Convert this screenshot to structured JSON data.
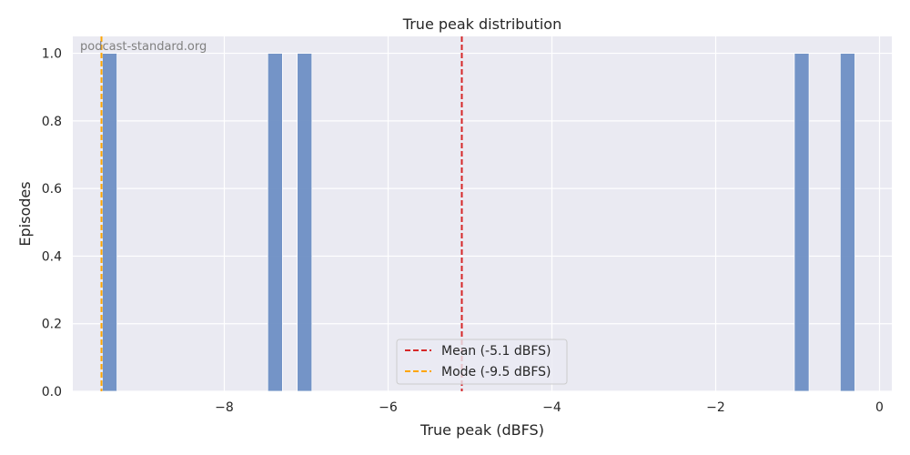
{
  "chart_data": {
    "type": "bar",
    "title": "True peak distribution",
    "xlabel": "True peak (dBFS)",
    "ylabel": "Episodes",
    "xlim": [
      -9.85,
      0.15
    ],
    "ylim": [
      0,
      1.05
    ],
    "xticks": [
      -8,
      -6,
      -4,
      -2,
      0
    ],
    "xtick_labels": [
      "−8",
      "−6",
      "−4",
      "−2",
      "0"
    ],
    "yticks": [
      0.0,
      0.2,
      0.4,
      0.6,
      0.8,
      1.0
    ],
    "ytick_labels": [
      "0.0",
      "0.2",
      "0.4",
      "0.6",
      "0.8",
      "1.0"
    ],
    "bin_width": 0.18,
    "bars": [
      {
        "x": -9.4,
        "value": 1
      },
      {
        "x": -7.38,
        "value": 1
      },
      {
        "x": -7.02,
        "value": 1
      },
      {
        "x": -0.95,
        "value": 1
      },
      {
        "x": -0.39,
        "value": 1
      }
    ],
    "bar_color": "#6e8fc4",
    "reference_lines": [
      {
        "name": "Mean (-5.1 dBFS)",
        "x": -5.1,
        "color": "#d62728",
        "style": "dashed"
      },
      {
        "name": "Mode (-9.5 dBFS)",
        "x": -9.5,
        "color": "#ffa500",
        "style": "dashed"
      }
    ],
    "legend_position": "lower-center",
    "grid": true,
    "background": "#eaeaf2"
  },
  "watermark": "podcast-standard.org"
}
